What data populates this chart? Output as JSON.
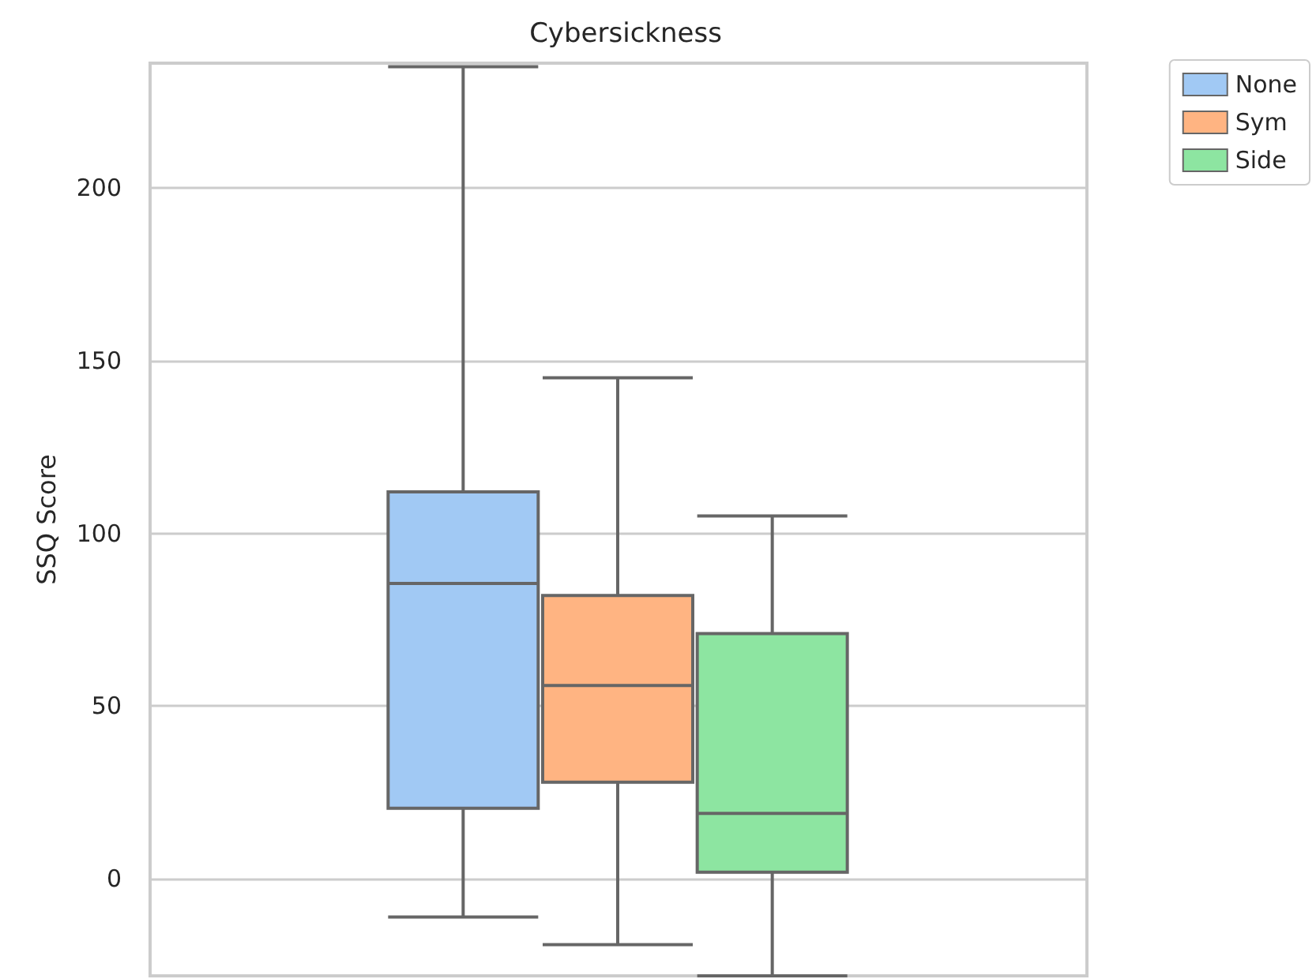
{
  "chart_data": {
    "type": "box",
    "title": "Cybersickness",
    "ylabel": "SSQ Score",
    "categories": [
      null
    ],
    "series": [
      {
        "name": "None",
        "color": "#a1c9f4",
        "boxes": [
          {
            "low": -11,
            "q1": 20.5,
            "median": 85.5,
            "q3": 112,
            "high": 235
          }
        ]
      },
      {
        "name": "Sym",
        "color": "#ffb482",
        "boxes": [
          {
            "low": -19,
            "q1": 28,
            "median": 56,
            "q3": 82,
            "high": 145
          }
        ]
      },
      {
        "name": "Side",
        "color": "#8de5a1",
        "boxes": [
          {
            "low": -28,
            "q1": 2,
            "median": 19,
            "q3": 71,
            "high": 105
          }
        ]
      }
    ],
    "ylim": [
      -28,
      236
    ],
    "yticks": [
      0,
      50,
      100,
      150,
      200
    ],
    "grid": "y",
    "legend": "top right",
    "tick_labels": "y"
  }
}
